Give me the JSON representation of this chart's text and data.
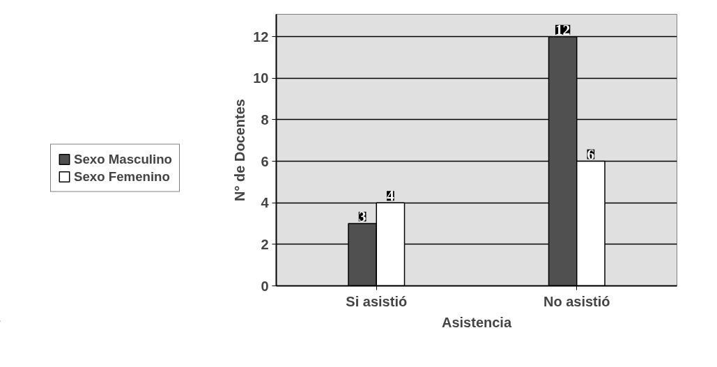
{
  "chart_data": {
    "type": "bar",
    "xlabel": "Asistencia",
    "ylabel": "N° de Docentes",
    "categories": [
      "Si asistió",
      "No asistió"
    ],
    "series": [
      {
        "name": "Sexo Masculino",
        "color": "#505050",
        "values": [
          3,
          12
        ]
      },
      {
        "name": "Sexo Femenino",
        "color": "#ffffff",
        "values": [
          4,
          6
        ]
      }
    ],
    "ylim": [
      0,
      12
    ],
    "yticks": [
      0,
      2,
      4,
      6,
      8,
      10,
      12
    ],
    "grid": "y",
    "legend": "left",
    "data_labels": true
  }
}
